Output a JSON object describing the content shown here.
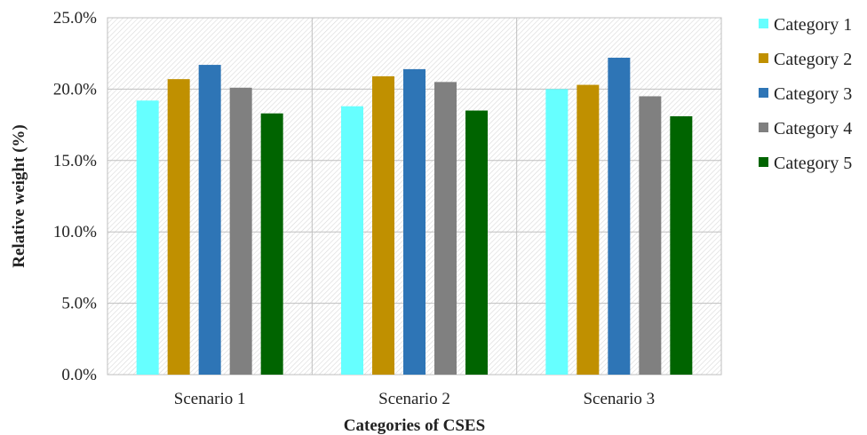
{
  "chart_data": {
    "type": "bar",
    "categories": [
      "Scenario 1",
      "Scenario 2",
      "Scenario 3"
    ],
    "series": [
      {
        "name": "Category 1",
        "color": "#66FFFF",
        "values": [
          19.2,
          18.8,
          20.0
        ]
      },
      {
        "name": "Category 2",
        "color": "#C09000",
        "values": [
          20.7,
          20.9,
          20.3
        ]
      },
      {
        "name": "Category 3",
        "color": "#2E75B6",
        "values": [
          21.7,
          21.4,
          22.2
        ]
      },
      {
        "name": "Category 4",
        "color": "#808080",
        "values": [
          20.1,
          20.5,
          19.5
        ]
      },
      {
        "name": "Category 5",
        "color": "#006400",
        "values": [
          18.3,
          18.5,
          18.1
        ]
      }
    ],
    "yticks": [
      "0.0%",
      "5.0%",
      "10.0%",
      "15.0%",
      "20.0%",
      "25.0%"
    ],
    "ylim": [
      0,
      25
    ],
    "xlabel": "Categories of CSES",
    "ylabel": "Relative weight (%)",
    "grid": true,
    "legend": "right"
  }
}
